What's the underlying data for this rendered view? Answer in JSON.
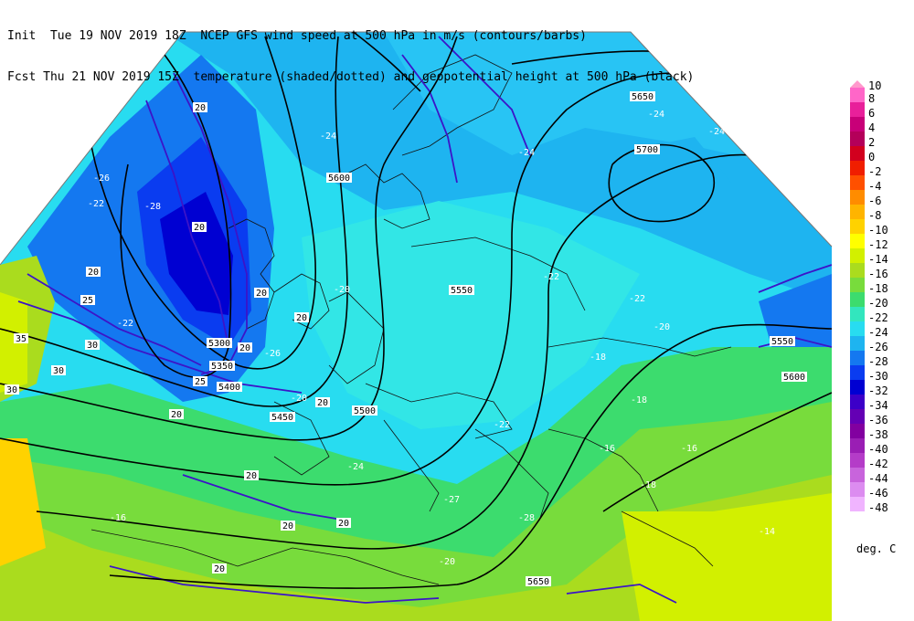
{
  "header": {
    "line1": "Init  Tue 19 NOV 2019 18Z  NCEP GFS wind speed at 500 hPa in m/s (contours/barbs)",
    "line2": "Fcst Thu 21 NOV 2019 15Z  temperature (shaded/dotted) and geopotential height at 500 hPa (black)"
  },
  "legend": {
    "top_label": "10",
    "entries": [
      {
        "label": "8",
        "color": "#ff66c8"
      },
      {
        "label": "6",
        "color": "#e8209a"
      },
      {
        "label": "4",
        "color": "#c80078"
      },
      {
        "label": "2",
        "color": "#b4005a"
      },
      {
        "label": "0",
        "color": "#d2001e"
      },
      {
        "label": "-2",
        "color": "#f01e00"
      },
      {
        "label": "-4",
        "color": "#ff5000"
      },
      {
        "label": "-6",
        "color": "#ff8c00"
      },
      {
        "label": "-8",
        "color": "#ffb400"
      },
      {
        "label": "-10",
        "color": "#ffd200"
      },
      {
        "label": "-12",
        "color": "#ffff00"
      },
      {
        "label": "-14",
        "color": "#d2f000"
      },
      {
        "label": "-16",
        "color": "#aadc1e"
      },
      {
        "label": "-18",
        "color": "#78dc3c"
      },
      {
        "label": "-20",
        "color": "#3cdc6e"
      },
      {
        "label": "-22",
        "color": "#32e6be"
      },
      {
        "label": "-24",
        "color": "#28dcf0"
      },
      {
        "label": "-26",
        "color": "#1eb4f0"
      },
      {
        "label": "-28",
        "color": "#1478f0"
      },
      {
        "label": "-30",
        "color": "#0a3cf0"
      },
      {
        "label": "-32",
        "color": "#0000d2"
      },
      {
        "label": "-34",
        "color": "#3c00c8"
      },
      {
        "label": "-36",
        "color": "#6400b4"
      },
      {
        "label": "-38",
        "color": "#8200a0"
      },
      {
        "label": "-40",
        "color": "#9a1eb4"
      },
      {
        "label": "-42",
        "color": "#b43cc8"
      },
      {
        "label": "-44",
        "color": "#c864dc"
      },
      {
        "label": "-46",
        "color": "#dc8cf0"
      },
      {
        "label": "-48",
        "color": "#f0b4ff"
      }
    ],
    "units": "deg. C"
  },
  "height_labels": [
    "5300",
    "5350",
    "5400",
    "5450",
    "5500",
    "5550",
    "5600",
    "5650",
    "5700",
    "5550",
    "5600",
    "5650"
  ],
  "temp_labels": [
    "-20",
    "-24",
    "-26",
    "-28",
    "-22",
    "-24",
    "-22",
    "-20",
    "-24",
    "-24",
    "-22",
    "-20",
    "-18",
    "-16",
    "-18",
    "-14",
    "-16",
    "-18",
    "-22",
    "-24",
    "-26",
    "-27",
    "-28",
    "-22",
    "-20",
    "-16"
  ],
  "wind_labels": [
    "20",
    "20",
    "25",
    "20",
    "20",
    "20",
    "30",
    "35",
    "30",
    "30",
    "25",
    "20",
    "20",
    "20",
    "20",
    "20",
    "20",
    "20"
  ]
}
